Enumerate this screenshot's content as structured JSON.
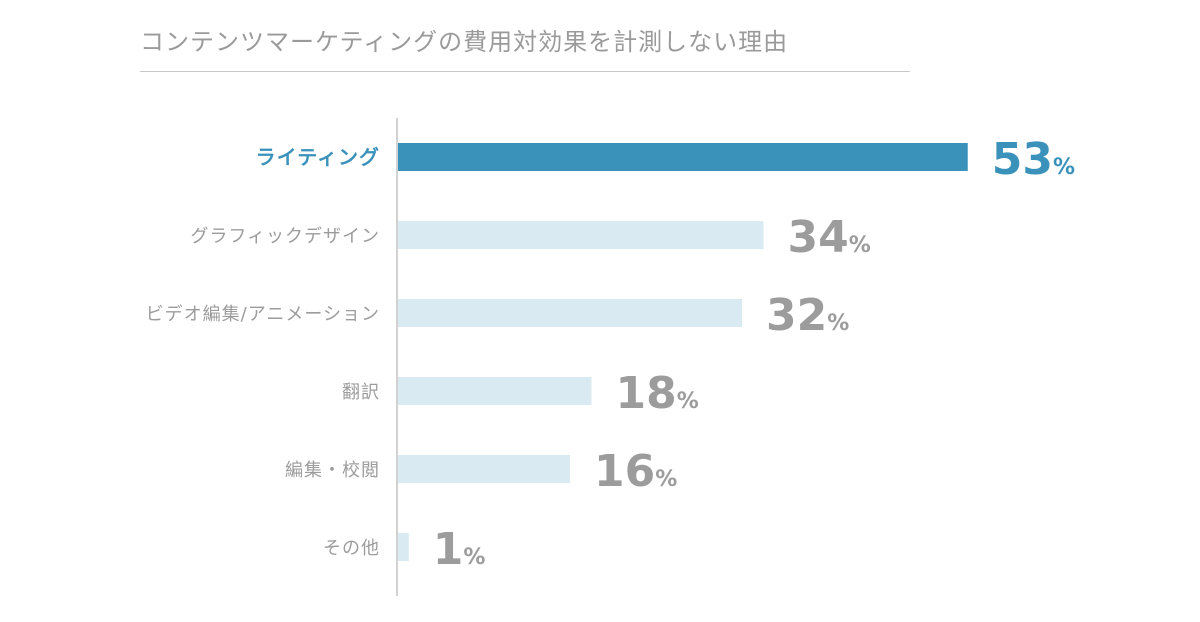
{
  "chart_data": {
    "type": "bar",
    "orientation": "horizontal",
    "title": "コンテンツマーケティングの費用対効果を計測しない理由",
    "categories": [
      "ライティング",
      "グラフィックデザイン",
      "ビデオ編集/アニメーション",
      "翻訳",
      "編集・校閲",
      "その他"
    ],
    "values": [
      53,
      34,
      32,
      18,
      16,
      1
    ],
    "value_labels": [
      "53",
      "34",
      "32",
      "18",
      "16",
      "1"
    ],
    "unit": "%",
    "highlight_index": 0,
    "colors": {
      "highlight_bar": "#3a92bb",
      "normal_bar": "#d9eaf2",
      "highlight_text": "#3a92bb",
      "normal_text": "#9c9c9c",
      "axis": "#b4b4b4"
    },
    "xlim": [
      0,
      100
    ],
    "grid": false,
    "legend": "none"
  }
}
